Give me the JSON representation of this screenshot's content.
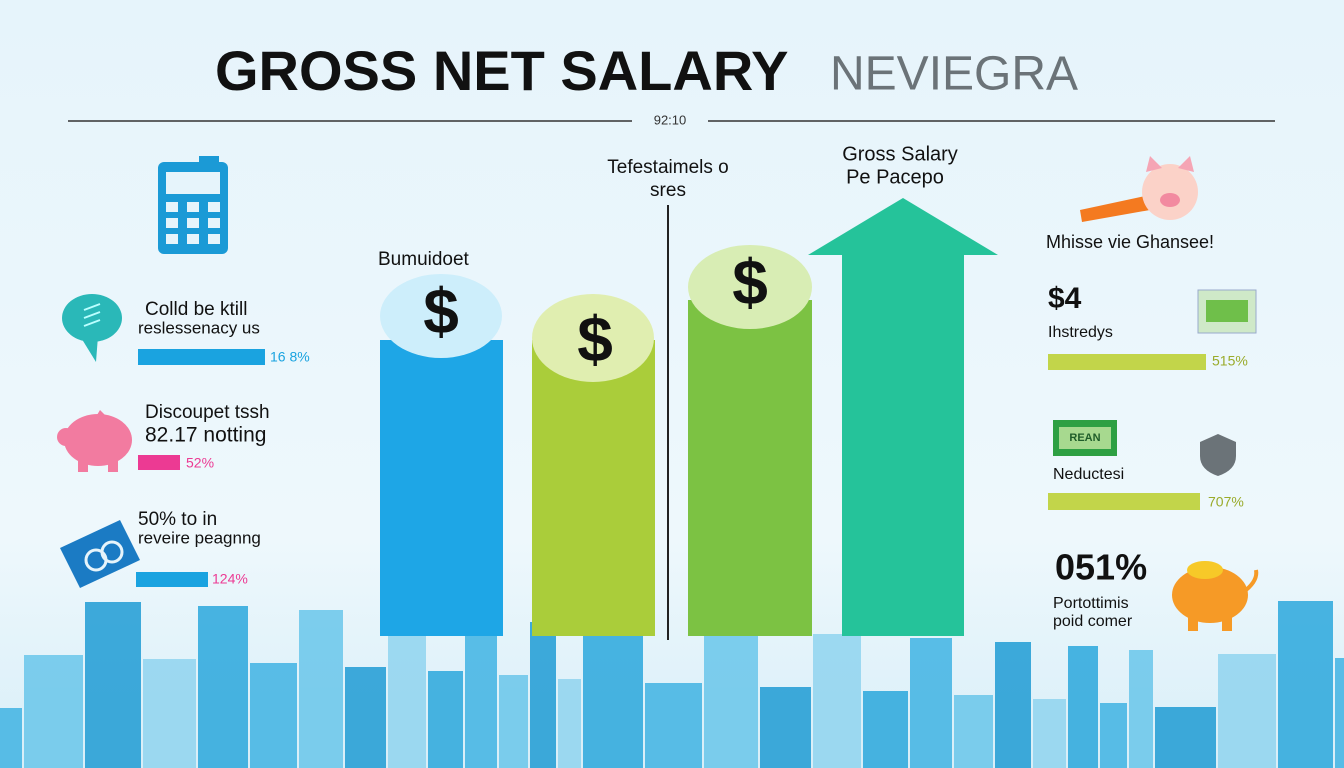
{
  "header": {
    "title": "GROSS NET SALARY",
    "title_suffix": "NEVIEGRA",
    "subtitle": "92:10"
  },
  "left_items": [
    {
      "line1": "Colld be ktill",
      "line2": "reslessenacy us",
      "value": "16 8%"
    },
    {
      "line1": "Discoupet tssh",
      "line2": "82.17 notting",
      "value": "52%"
    },
    {
      "line1": "50% to in",
      "line2": "reveire peagnng",
      "value": "124%"
    }
  ],
  "center": {
    "bar_label": "Bumuidoet",
    "divider_label": [
      "Tefestaimels o",
      "sres"
    ],
    "arrow_label": [
      "Gross Salary",
      "Pe Pacepo"
    ],
    "symbols": [
      "$",
      "$",
      "$"
    ]
  },
  "right_items": {
    "heading": "Mhisse vie Ghansee!",
    "amount": "$4",
    "amount_label": "Ihstredys",
    "amount_value": "515%",
    "bill_text": "REAN",
    "deduction_label": "Neductesi",
    "deduction_value": "707%",
    "big_value": "051%",
    "big_label": [
      "Portottimis",
      "poid comer"
    ]
  }
}
